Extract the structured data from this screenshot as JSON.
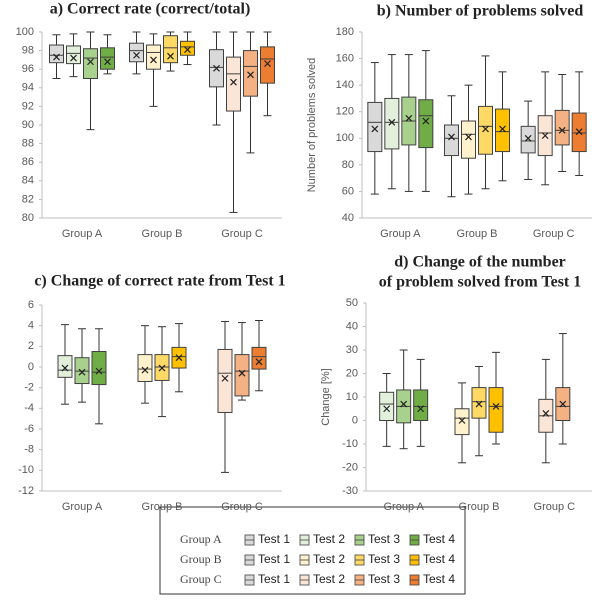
{
  "chart_data": [
    {
      "type": "box",
      "title": [
        "a) Correct rate (correct/total)"
      ],
      "categories": [
        "Group A",
        "Group B",
        "Group C"
      ],
      "ylim": [
        80,
        100
      ],
      "yticks": [
        80,
        82,
        84,
        86,
        88,
        90,
        92,
        94,
        96,
        98,
        100
      ],
      "groups": [
        [
          {
            "color": "#d9d9d9",
            "min": 95.0,
            "q1": 96.7,
            "median": 97.5,
            "q3": 98.6,
            "max": 99.7,
            "mean": 97.3
          },
          {
            "color": "#e2efda",
            "min": 95.2,
            "q1": 96.6,
            "median": 97.7,
            "q3": 98.5,
            "max": 99.8,
            "mean": 97.2
          },
          {
            "color": "#a9d18e",
            "min": 89.5,
            "q1": 95.0,
            "median": 97.2,
            "q3": 98.2,
            "max": 100,
            "mean": 96.8
          },
          {
            "color": "#70ad47",
            "min": 95.5,
            "q1": 96.0,
            "median": 97.3,
            "q3": 98.3,
            "max": 99.7,
            "mean": 96.8
          }
        ],
        [
          {
            "color": "#d9d9d9",
            "min": 95.5,
            "q1": 96.8,
            "median": 98.0,
            "q3": 98.8,
            "max": 100,
            "mean": 97.5
          },
          {
            "color": "#fff2cc",
            "min": 92.0,
            "q1": 96.0,
            "median": 97.8,
            "q3": 98.6,
            "max": 99.8,
            "mean": 97.0
          },
          {
            "color": "#ffd966",
            "min": 95.8,
            "q1": 96.7,
            "median": 98.3,
            "q3": 99.6,
            "max": 100,
            "mean": 97.4
          },
          {
            "color": "#ffc000",
            "min": 96.5,
            "q1": 97.5,
            "median": 98.4,
            "q3": 99.0,
            "max": 100,
            "mean": 98.1
          }
        ],
        [
          {
            "color": "#d9d9d9",
            "min": 90.0,
            "q1": 94.1,
            "median": 96.2,
            "q3": 98.1,
            "max": 100,
            "mean": 96.1
          },
          {
            "color": "#fbe5d6",
            "min": 80.6,
            "q1": 91.5,
            "median": 95.5,
            "q3": 97.3,
            "max": 100,
            "mean": 94.6
          },
          {
            "color": "#f4b183",
            "min": 87.0,
            "q1": 93.1,
            "median": 96.3,
            "q3": 98.0,
            "max": 100,
            "mean": 95.4
          },
          {
            "color": "#ed7d31",
            "min": 91.0,
            "q1": 94.5,
            "median": 97.1,
            "q3": 98.4,
            "max": 100,
            "mean": 96.6
          }
        ]
      ]
    },
    {
      "type": "box",
      "title": [
        "b) Number of problems solved"
      ],
      "ylabel": "Number of problems solved",
      "categories": [
        "Group A",
        "Group B",
        "Group C"
      ],
      "ylim": [
        40,
        180
      ],
      "yticks": [
        40,
        60,
        80,
        100,
        120,
        140,
        160,
        180
      ],
      "groups": [
        [
          {
            "color": "#d9d9d9",
            "min": 58,
            "q1": 90,
            "median": 112,
            "q3": 127,
            "max": 157,
            "mean": 107
          },
          {
            "color": "#e2efda",
            "min": 62,
            "q1": 92,
            "median": 112,
            "q3": 130,
            "max": 163,
            "mean": 112
          },
          {
            "color": "#a9d18e",
            "min": 60,
            "q1": 95,
            "median": 113,
            "q3": 131,
            "max": 163,
            "mean": 115
          },
          {
            "color": "#70ad47",
            "min": 60,
            "q1": 93,
            "median": 117,
            "q3": 129,
            "max": 166,
            "mean": 113
          }
        ],
        [
          {
            "color": "#d9d9d9",
            "min": 56,
            "q1": 87,
            "median": 100,
            "q3": 110,
            "max": 132,
            "mean": 101
          },
          {
            "color": "#fff2cc",
            "min": 58,
            "q1": 85,
            "median": 103,
            "q3": 113,
            "max": 140,
            "mean": 101
          },
          {
            "color": "#ffd966",
            "min": 62,
            "q1": 88,
            "median": 109,
            "q3": 124,
            "max": 162,
            "mean": 107
          },
          {
            "color": "#ffc000",
            "min": 68,
            "q1": 90,
            "median": 105,
            "q3": 122,
            "max": 150,
            "mean": 107
          }
        ],
        [
          {
            "color": "#d9d9d9",
            "min": 69,
            "q1": 89,
            "median": 98,
            "q3": 109,
            "max": 128,
            "mean": 100
          },
          {
            "color": "#fbe5d6",
            "min": 65,
            "q1": 87,
            "median": 104,
            "q3": 117,
            "max": 150,
            "mean": 102
          },
          {
            "color": "#f4b183",
            "min": 75,
            "q1": 95,
            "median": 106,
            "q3": 121,
            "max": 148,
            "mean": 106
          },
          {
            "color": "#ed7d31",
            "min": 72,
            "q1": 90,
            "median": 104,
            "q3": 119,
            "max": 150,
            "mean": 105
          }
        ]
      ]
    },
    {
      "type": "box",
      "title": [
        "c) Change of correct rate from Test 1"
      ],
      "categories": [
        "Group A",
        "Group B",
        "Group C"
      ],
      "ylim": [
        -12,
        6
      ],
      "yticks": [
        -12,
        -10,
        -8,
        -6,
        -4,
        -2,
        0,
        2,
        4,
        6
      ],
      "groups": [
        [
          {
            "color": "#e2efda",
            "min": -3.6,
            "q1": -1.0,
            "median": -0.3,
            "q3": 1.1,
            "max": 4.1,
            "mean": -0.1
          },
          {
            "color": "#a9d18e",
            "min": -3.4,
            "q1": -1.6,
            "median": -0.4,
            "q3": 0.9,
            "max": 3.7,
            "mean": -0.5
          },
          {
            "color": "#70ad47",
            "min": -5.5,
            "q1": -1.7,
            "median": -0.5,
            "q3": 1.5,
            "max": 3.7,
            "mean": -0.4
          }
        ],
        [
          {
            "color": "#fff2cc",
            "min": -3.5,
            "q1": -1.4,
            "median": -0.2,
            "q3": 1.2,
            "max": 4.0,
            "mean": -0.3
          },
          {
            "color": "#ffd966",
            "min": -4.8,
            "q1": -1.3,
            "median": 0.0,
            "q3": 1.2,
            "max": 3.9,
            "mean": -0.1
          },
          {
            "color": "#ffc000",
            "min": -2.4,
            "q1": -0.1,
            "median": 1.0,
            "q3": 1.9,
            "max": 4.2,
            "mean": 0.9
          }
        ],
        [
          {
            "color": "#fbe5d6",
            "min": -10.2,
            "q1": -4.4,
            "median": -0.6,
            "q3": 1.7,
            "max": 4.4,
            "mean": -1.1
          },
          {
            "color": "#f4b183",
            "min": -3.2,
            "q1": -2.8,
            "median": -0.4,
            "q3": 1.2,
            "max": 4.3,
            "mean": -0.6
          },
          {
            "color": "#ed7d31",
            "min": -2.3,
            "q1": -0.2,
            "median": 1.0,
            "q3": 1.9,
            "max": 4.5,
            "mean": 0.5
          }
        ]
      ]
    },
    {
      "type": "box",
      "title": [
        "d) Change of the number",
        "of problem solved from Test 1"
      ],
      "ylabel": "Change [%]",
      "categories": [
        "Group A",
        "Group B",
        "Group C"
      ],
      "ylim": [
        -30,
        50
      ],
      "yticks": [
        -30,
        -20,
        -10,
        0,
        10,
        20,
        30,
        40,
        50
      ],
      "groups": [
        [
          {
            "color": "#e2efda",
            "min": -11,
            "q1": 0,
            "median": 7,
            "q3": 12,
            "max": 20,
            "mean": 5
          },
          {
            "color": "#a9d18e",
            "min": -12,
            "q1": -1,
            "median": 6,
            "q3": 13,
            "max": 30,
            "mean": 7
          },
          {
            "color": "#70ad47",
            "min": -11,
            "q1": 0,
            "median": 6,
            "q3": 13,
            "max": 26,
            "mean": 5
          }
        ],
        [
          {
            "color": "#fff2cc",
            "min": -18,
            "q1": -6,
            "median": 1,
            "q3": 5,
            "max": 16,
            "mean": 0
          },
          {
            "color": "#ffd966",
            "min": -15,
            "q1": 1,
            "median": 8,
            "q3": 14,
            "max": 23,
            "mean": 7
          },
          {
            "color": "#ffc000",
            "min": -10,
            "q1": -5,
            "median": 6,
            "q3": 14,
            "max": 29,
            "mean": 6
          }
        ],
        [
          {
            "color": "#fbe5d6",
            "min": -18,
            "q1": -5,
            "median": 2,
            "q3": 9,
            "max": 26,
            "mean": 3
          },
          {
            "color": "#f4b183",
            "min": -10,
            "q1": 0,
            "median": 6,
            "q3": 14,
            "max": 37,
            "mean": 7
          }
        ]
      ]
    }
  ],
  "legend": {
    "rows": [
      {
        "label": "Group A",
        "items": [
          {
            "name": "Test 1",
            "color": "#d9d9d9"
          },
          {
            "name": "Test 2",
            "color": "#e2efda"
          },
          {
            "name": "Test 3",
            "color": "#a9d18e"
          },
          {
            "name": "Test 4",
            "color": "#70ad47"
          }
        ]
      },
      {
        "label": "Group B",
        "items": [
          {
            "name": "Test 1",
            "color": "#d9d9d9"
          },
          {
            "name": "Test 2",
            "color": "#fff2cc"
          },
          {
            "name": "Test 3",
            "color": "#ffd966"
          },
          {
            "name": "Test 4",
            "color": "#ffc000"
          }
        ]
      },
      {
        "label": "Group C",
        "items": [
          {
            "name": "Test 1",
            "color": "#d9d9d9"
          },
          {
            "name": "Test 2",
            "color": "#fbe5d6"
          },
          {
            "name": "Test 3",
            "color": "#f4b183"
          },
          {
            "name": "Test 4",
            "color": "#ed7d31"
          }
        ]
      }
    ]
  }
}
